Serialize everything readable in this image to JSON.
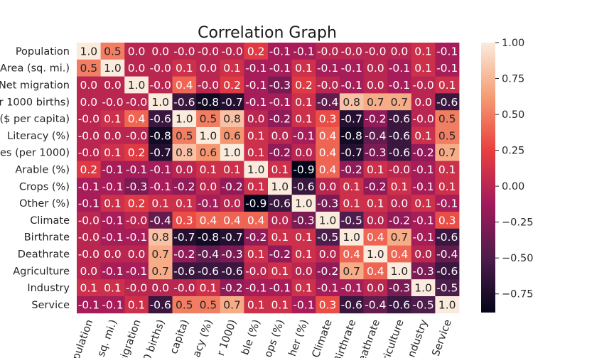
{
  "chart_data": {
    "type": "heatmap",
    "title": "Correlation Graph",
    "row_labels": [
      "Population",
      "Area (sq. mi.)",
      "Net migration",
      "er 1000 births)",
      "($ per capita)",
      "Literacy (%)",
      "es (per 1000)",
      "Arable (%)",
      "Crops (%)",
      "Other (%)",
      "Climate",
      "Birthrate",
      "Deathrate",
      "Agriculture",
      "Industry",
      "Service"
    ],
    "col_labels": [
      "pulation",
      "sq. mi.)",
      "migration",
      "0 births)",
      "capita)",
      "acy (%)",
      "r 1000)",
      "ble (%)",
      "ops (%)",
      "her (%)",
      "Climate",
      "Birthrate",
      "eathrate",
      "griculture",
      "ndustry",
      "Service"
    ],
    "values": [
      [
        "1.0",
        "0.5",
        "0.0",
        "0.0",
        "-0.0",
        "-0.0",
        "-0.0",
        "0.2",
        "-0.1",
        "-0.1",
        "-0.0",
        "-0.0",
        "-0.0",
        "0.0",
        "0.1",
        "-0.1"
      ],
      [
        "0.5",
        "1.0",
        "0.0",
        "-0.0",
        "0.1",
        "0.0",
        "0.1",
        "-0.1",
        "-0.1",
        "0.1",
        "-0.1",
        "-0.1",
        "0.0",
        "-0.1",
        "0.1",
        "-0.1"
      ],
      [
        "0.0",
        "0.0",
        "1.0",
        "-0.0",
        "0.4",
        "-0.0",
        "0.2",
        "-0.1",
        "-0.3",
        "0.2",
        "-0.0",
        "-0.1",
        "0.0",
        "-0.1",
        "-0.0",
        "0.1"
      ],
      [
        "0.0",
        "-0.0",
        "-0.0",
        "1.0",
        "-0.6",
        "-0.8",
        "-0.7",
        "-0.1",
        "-0.1",
        "0.1",
        "-0.4",
        "0.8",
        "0.7",
        "0.7",
        "0.0",
        "-0.6"
      ],
      [
        "-0.0",
        "0.1",
        "0.4",
        "-0.6",
        "1.0",
        "0.5",
        "0.8",
        "0.0",
        "-0.2",
        "0.1",
        "0.3",
        "-0.7",
        "-0.2",
        "-0.6",
        "-0.0",
        "0.5"
      ],
      [
        "-0.0",
        "0.0",
        "-0.0",
        "-0.8",
        "0.5",
        "1.0",
        "0.6",
        "0.1",
        "0.0",
        "-0.1",
        "0.4",
        "-0.8",
        "-0.4",
        "-0.6",
        "0.1",
        "0.5"
      ],
      [
        "-0.0",
        "0.1",
        "0.2",
        "-0.7",
        "0.8",
        "0.6",
        "1.0",
        "0.1",
        "-0.2",
        "0.0",
        "0.4",
        "-0.7",
        "-0.3",
        "-0.6",
        "-0.2",
        "0.7"
      ],
      [
        "0.2",
        "-0.1",
        "-0.1",
        "-0.1",
        "0.0",
        "0.1",
        "0.1",
        "1.0",
        "0.1",
        "-0.9",
        "0.4",
        "-0.2",
        "0.1",
        "-0.0",
        "-0.1",
        "0.1"
      ],
      [
        "-0.1",
        "-0.1",
        "-0.3",
        "-0.1",
        "-0.2",
        "0.0",
        "-0.2",
        "0.1",
        "1.0",
        "-0.6",
        "0.0",
        "0.1",
        "-0.2",
        "0.1",
        "-0.1",
        "0.1"
      ],
      [
        "-0.1",
        "0.1",
        "0.2",
        "0.1",
        "0.1",
        "-0.1",
        "0.0",
        "-0.9",
        "-0.6",
        "1.0",
        "-0.3",
        "0.1",
        "0.1",
        "0.0",
        "0.1",
        "-0.1"
      ],
      [
        "-0.0",
        "-0.1",
        "-0.0",
        "-0.4",
        "0.3",
        "0.4",
        "0.4",
        "0.4",
        "0.0",
        "-0.3",
        "1.0",
        "-0.5",
        "0.0",
        "-0.2",
        "-0.1",
        "0.3"
      ],
      [
        "-0.0",
        "-0.1",
        "-0.1",
        "0.8",
        "-0.7",
        "-0.8",
        "-0.7",
        "-0.2",
        "0.1",
        "0.1",
        "-0.5",
        "1.0",
        "0.4",
        "0.7",
        "-0.1",
        "-0.6"
      ],
      [
        "-0.0",
        "0.0",
        "0.0",
        "0.7",
        "-0.2",
        "-0.4",
        "-0.3",
        "0.1",
        "-0.2",
        "0.1",
        "0.0",
        "0.4",
        "1.0",
        "0.4",
        "0.0",
        "-0.4"
      ],
      [
        "0.0",
        "-0.1",
        "-0.1",
        "0.7",
        "-0.6",
        "-0.6",
        "-0.6",
        "-0.0",
        "0.1",
        "0.0",
        "-0.2",
        "0.7",
        "0.4",
        "1.0",
        "-0.3",
        "-0.6"
      ],
      [
        "0.1",
        "0.1",
        "-0.0",
        "0.0",
        "-0.0",
        "0.1",
        "-0.2",
        "-0.1",
        "-0.1",
        "0.1",
        "-0.1",
        "-0.1",
        "0.0",
        "-0.3",
        "1.0",
        "-0.5"
      ],
      [
        "-0.1",
        "-0.1",
        "0.1",
        "-0.6",
        "0.5",
        "0.5",
        "0.7",
        "0.1",
        "0.1",
        "-0.1",
        "0.3",
        "-0.6",
        "-0.4",
        "-0.6",
        "-0.5",
        "1.0"
      ]
    ],
    "colorbar": {
      "vmin": -0.88,
      "vmax": 1.0,
      "ticks": [
        "1.00",
        "0.75",
        "0.50",
        "0.25",
        "0.00",
        "−0.25",
        "−0.50",
        "−0.75"
      ],
      "colormap": [
        "#03051a",
        "#4c1d4b",
        "#a11a5b",
        "#e83f3f",
        "#f69c73",
        "#faebdd"
      ]
    },
    "grid": false,
    "legend": "colorbar-right"
  }
}
